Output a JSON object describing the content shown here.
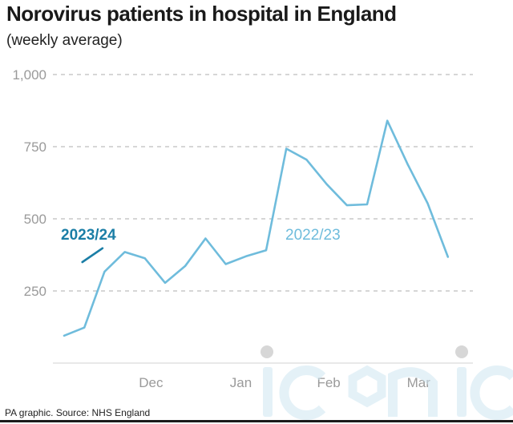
{
  "title": "Norovirus patients in hospital in England",
  "subtitle": "(weekly average)",
  "source": "PA graphic. Source: NHS England",
  "watermark": "iconic",
  "colors": {
    "current_season": "#1b7ea6",
    "previous_season": "#6fbcdc",
    "grid": "#bdbdbd",
    "tick_text": "#9a9a9a"
  },
  "chart_data": {
    "type": "line",
    "title": "Norovirus patients in hospital in England",
    "subtitle": "(weekly average)",
    "xlabel": "",
    "ylabel": "",
    "ylim": [
      0,
      1000
    ],
    "yticks": [
      250,
      500,
      750,
      1000
    ],
    "ytick_labels": [
      "250",
      "500",
      "750",
      "1,000"
    ],
    "xlim": [
      0,
      20.3
    ],
    "xticks": [
      {
        "label": "Dec",
        "x": 4.3
      },
      {
        "label": "Jan",
        "x": 8.75
      },
      {
        "label": "Feb",
        "x": 13.1
      },
      {
        "label": "Mar",
        "x": 17.55
      }
    ],
    "grid": "horizontal dashed",
    "series": [
      {
        "name": "2022/23",
        "color": "#6fbcdc",
        "x": [
          0,
          1,
          2,
          3,
          4,
          5,
          6,
          7,
          8,
          9,
          10,
          11,
          12,
          13,
          14,
          15,
          16,
          17,
          18,
          19,
          20
        ],
        "values": [
          95,
          123,
          317,
          385,
          363,
          278,
          337,
          432,
          343,
          370,
          391,
          743,
          705,
          620,
          547,
          550,
          840,
          690,
          553,
          368,
          null
        ]
      },
      {
        "name": "2023/24",
        "color": "#1b7ea6",
        "x": [
          0.9,
          1.9
        ],
        "values": [
          350,
          398
        ]
      }
    ]
  }
}
